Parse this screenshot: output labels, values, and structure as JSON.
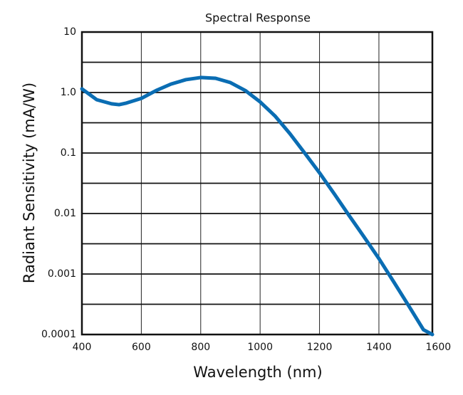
{
  "chart_data": {
    "type": "line",
    "title": "Spectral Response",
    "x_label": "Wavelength (nm)",
    "y_label": "Radiant Sensitivity (mA/W)",
    "log_y": true,
    "grid": true,
    "xlim": [
      400,
      1580
    ],
    "xticks": [
      400,
      600,
      800,
      1000,
      1200,
      1400,
      1600
    ],
    "ylim": [
      0.0001,
      10
    ],
    "yticks": [
      {
        "value": 10,
        "label": "10"
      },
      {
        "value": 1,
        "label": "1.0"
      },
      {
        "value": 0.1,
        "label": "0.1"
      },
      {
        "value": 0.01,
        "label": "0.01"
      },
      {
        "value": 0.001,
        "label": "0.001"
      },
      {
        "value": 0.0001,
        "label": "0.0001"
      }
    ],
    "minor_yticks": [
      3.16,
      0.316,
      0.0316,
      0.00316,
      0.000316
    ],
    "x": [
      400,
      450,
      500,
      525,
      550,
      600,
      650,
      700,
      750,
      800,
      850,
      900,
      950,
      1000,
      1050,
      1100,
      1150,
      1200,
      1250,
      1300,
      1350,
      1400,
      1450,
      1500,
      1550,
      1580
    ],
    "series": [
      {
        "name": "Radiant Sensitivity",
        "color": "#0a6db3",
        "values": [
          1.15,
          0.76,
          0.65,
          0.63,
          0.67,
          0.8,
          1.08,
          1.38,
          1.63,
          1.77,
          1.72,
          1.46,
          1.08,
          0.7,
          0.41,
          0.21,
          0.1,
          0.047,
          0.021,
          0.0092,
          0.0041,
          0.0018,
          0.00074,
          0.0003,
          0.00012,
          0.0001
        ]
      }
    ]
  }
}
